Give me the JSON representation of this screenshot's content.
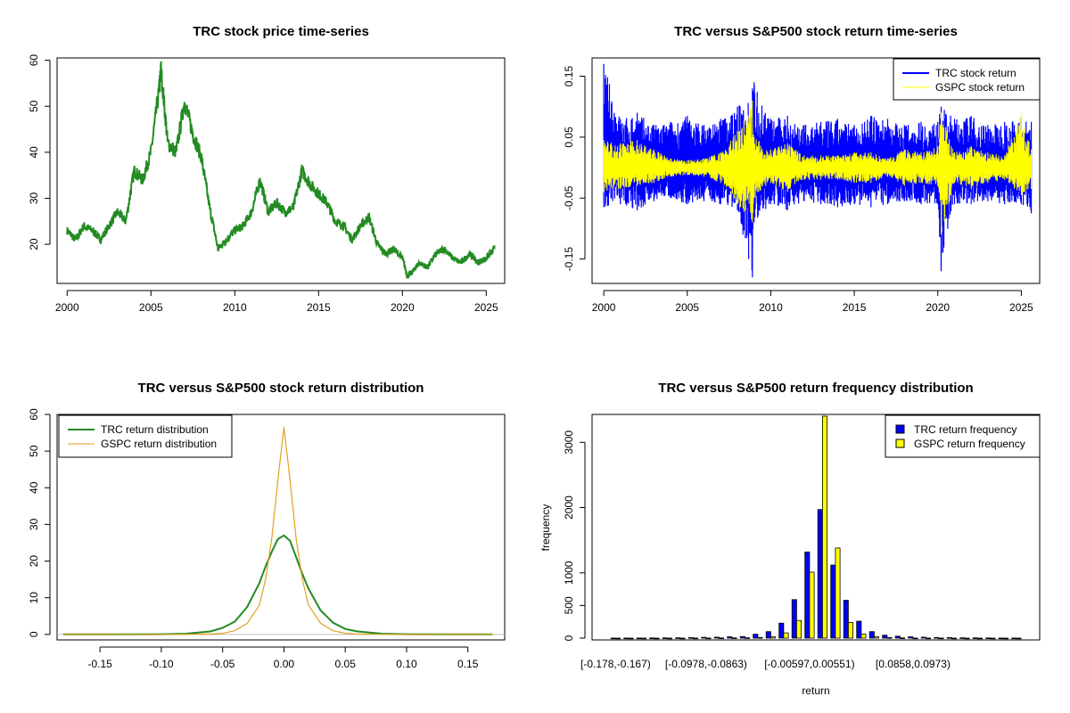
{
  "colors": {
    "price_line": "#228B22",
    "trc_return": "#0000FF",
    "gspc_return": "#FFFF00",
    "trc_density": "#228B22",
    "gspc_density": "#E3A020",
    "trc_bar": "#0000FF",
    "gspc_bar": "#FFFF00"
  },
  "chart_data": [
    {
      "type": "line",
      "title": "TRC stock price time-series",
      "xlabel": "",
      "ylabel": "",
      "xlim": [
        1999.4,
        2026.1
      ],
      "ylim": [
        11.5,
        60.5
      ],
      "xticks": [
        2000,
        2005,
        2010,
        2015,
        2020,
        2025
      ],
      "yticks": [
        20,
        30,
        40,
        50,
        60
      ],
      "series": [
        {
          "x": [
            2000.0,
            2000.5,
            2001.0,
            2001.5,
            2002.0,
            2002.5,
            2003.0,
            2003.5,
            2004.0,
            2004.5,
            2005.0,
            2005.5,
            2005.6,
            2006.0,
            2006.5,
            2007.0,
            2007.5,
            2008.0,
            2008.5,
            2009.0,
            2009.5,
            2010.0,
            2010.5,
            2011.0,
            2011.5,
            2012.0,
            2012.5,
            2013.0,
            2013.5,
            2014.0,
            2014.5,
            2015.0,
            2015.5,
            2016.0,
            2016.5,
            2017.0,
            2017.5,
            2018.0,
            2018.5,
            2019.0,
            2019.5,
            2020.0,
            2020.3,
            2020.6,
            2021.0,
            2021.5,
            2022.0,
            2022.5,
            2023.0,
            2023.5,
            2024.0,
            2024.5,
            2025.0,
            2025.5
          ],
          "values": [
            23,
            21,
            24,
            23,
            21,
            24,
            27,
            25,
            36,
            34,
            40,
            54,
            58,
            42,
            40,
            51,
            44,
            39,
            28,
            19,
            21,
            23,
            24,
            27,
            34,
            27,
            29,
            27,
            28,
            36,
            33,
            31,
            29,
            25,
            24,
            21,
            24,
            26,
            20,
            18,
            19,
            17,
            13,
            14,
            16,
            15,
            18,
            19,
            17,
            16,
            18,
            16,
            17,
            19
          ]
        }
      ]
    },
    {
      "type": "line",
      "title": "TRC versus S&P500 stock return time-series",
      "xlabel": "",
      "ylabel": "",
      "xlim": [
        1999.3,
        2026.1
      ],
      "ylim": [
        -0.19,
        0.18
      ],
      "xticks": [
        2000,
        2005,
        2010,
        2015,
        2020,
        2025
      ],
      "yticks": [
        -0.15,
        -0.05,
        0.05,
        0.15
      ],
      "legend": "top-right",
      "series": [
        {
          "name": "TRC stock return",
          "x": [
            2000.0,
            2001.0,
            2002.0,
            2003.0,
            2004.0,
            2005.0,
            2006.0,
            2007.0,
            2008.0,
            2008.9,
            2009.0,
            2010.0,
            2011.0,
            2012.0,
            2013.0,
            2014.0,
            2015.0,
            2016.0,
            2017.0,
            2018.0,
            2019.0,
            2020.0,
            2020.2,
            2021.0,
            2022.0,
            2023.0,
            2024.0,
            2025.0,
            2025.6
          ],
          "low": [
            -0.065,
            -0.06,
            -0.07,
            -0.055,
            -0.05,
            -0.06,
            -0.055,
            -0.06,
            -0.07,
            -0.18,
            -0.09,
            -0.06,
            -0.07,
            -0.055,
            -0.06,
            -0.065,
            -0.06,
            -0.065,
            -0.06,
            -0.055,
            -0.06,
            -0.06,
            -0.17,
            -0.06,
            -0.06,
            -0.055,
            -0.06,
            -0.06,
            -0.075
          ],
          "high": [
            0.17,
            0.08,
            0.09,
            0.07,
            0.075,
            0.085,
            0.07,
            0.08,
            0.1,
            0.13,
            0.14,
            0.08,
            0.085,
            0.07,
            0.075,
            0.08,
            0.07,
            0.085,
            0.08,
            0.07,
            0.075,
            0.075,
            0.1,
            0.08,
            0.085,
            0.07,
            0.075,
            0.08,
            0.075
          ]
        },
        {
          "name": "GSPC stock return",
          "x": [
            2000.0,
            2001.0,
            2002.0,
            2003.0,
            2004.0,
            2005.0,
            2006.0,
            2007.0,
            2008.0,
            2008.9,
            2009.0,
            2010.0,
            2011.0,
            2012.0,
            2013.0,
            2014.0,
            2015.0,
            2016.0,
            2017.0,
            2018.0,
            2019.0,
            2020.0,
            2020.2,
            2021.0,
            2022.0,
            2023.0,
            2024.0,
            2025.0,
            2025.6
          ],
          "low": [
            -0.04,
            -0.035,
            -0.03,
            -0.025,
            -0.015,
            -0.012,
            -0.015,
            -0.025,
            -0.06,
            -0.09,
            -0.05,
            -0.025,
            -0.04,
            -0.02,
            -0.02,
            -0.02,
            -0.025,
            -0.025,
            -0.015,
            -0.03,
            -0.025,
            -0.03,
            -0.11,
            -0.025,
            -0.035,
            -0.025,
            -0.02,
            -0.045,
            -0.035
          ],
          "high": [
            0.045,
            0.04,
            0.045,
            0.03,
            0.015,
            0.012,
            0.015,
            0.025,
            0.06,
            0.11,
            0.05,
            0.03,
            0.04,
            0.02,
            0.02,
            0.02,
            0.025,
            0.025,
            0.015,
            0.03,
            0.025,
            0.035,
            0.09,
            0.025,
            0.035,
            0.025,
            0.02,
            0.09,
            0.03
          ]
        }
      ]
    },
    {
      "type": "line",
      "title": "TRC versus S&P500 stock return distribution",
      "xlabel": "",
      "ylabel": "",
      "xlim": [
        -0.185,
        0.18
      ],
      "ylim": [
        -1.5,
        60
      ],
      "xticks": [
        -0.15,
        -0.1,
        -0.05,
        0.0,
        0.05,
        0.1,
        0.15
      ],
      "yticks": [
        0,
        10,
        20,
        30,
        40,
        50,
        60
      ],
      "legend": "top-left",
      "x": [
        -0.18,
        -0.1,
        -0.08,
        -0.06,
        -0.05,
        -0.04,
        -0.03,
        -0.02,
        -0.015,
        -0.01,
        -0.005,
        0.0,
        0.005,
        0.01,
        0.015,
        0.02,
        0.03,
        0.04,
        0.05,
        0.06,
        0.08,
        0.1,
        0.17
      ],
      "series": [
        {
          "name": "TRC return distribution",
          "values": [
            0,
            0.05,
            0.2,
            0.8,
            1.8,
            3.5,
            7.5,
            14,
            18.5,
            22.5,
            26,
            27,
            25.5,
            21,
            16.5,
            12.5,
            6.5,
            3.2,
            1.5,
            0.8,
            0.2,
            0.05,
            0
          ]
        },
        {
          "name": "GSPC return distribution",
          "values": [
            0,
            0,
            0.02,
            0.1,
            0.3,
            1,
            3,
            8,
            15,
            26,
            42,
            56.5,
            42,
            26,
            15,
            8,
            3,
            1,
            0.3,
            0.1,
            0.02,
            0,
            0
          ]
        }
      ]
    },
    {
      "type": "bar",
      "title": "TRC versus S&P500 return frequency distribution",
      "xlabel": "return",
      "ylabel": "frequency",
      "ylim": [
        0,
        3400
      ],
      "yticks": [
        0,
        500,
        1000,
        2000,
        3000
      ],
      "legend": "top-right",
      "tick_labels": [
        {
          "index": 0,
          "label": "[-0.178,-0.167)"
        },
        {
          "index": 7,
          "label": "[-0.0978,-0.0863)"
        },
        {
          "index": 15,
          "label": "[-0.00597,0.00551)"
        },
        {
          "index": 23,
          "label": "[0.0858,0.0973)"
        }
      ],
      "series": [
        {
          "name": "TRC return frequency",
          "values": [
            1,
            1,
            2,
            3,
            4,
            6,
            8,
            12,
            15,
            20,
            25,
            60,
            100,
            230,
            590,
            1320,
            1970,
            1120,
            580,
            260,
            100,
            45,
            30,
            20,
            15,
            10,
            8,
            5,
            4,
            3,
            2,
            1
          ]
        },
        {
          "name": "GSPC return frequency",
          "values": [
            0,
            0,
            0,
            0,
            0,
            0,
            1,
            2,
            3,
            4,
            5,
            10,
            20,
            80,
            270,
            1010,
            3400,
            1380,
            240,
            60,
            20,
            8,
            4,
            2,
            1,
            1,
            0,
            0,
            0,
            0,
            0,
            0
          ]
        }
      ]
    }
  ]
}
